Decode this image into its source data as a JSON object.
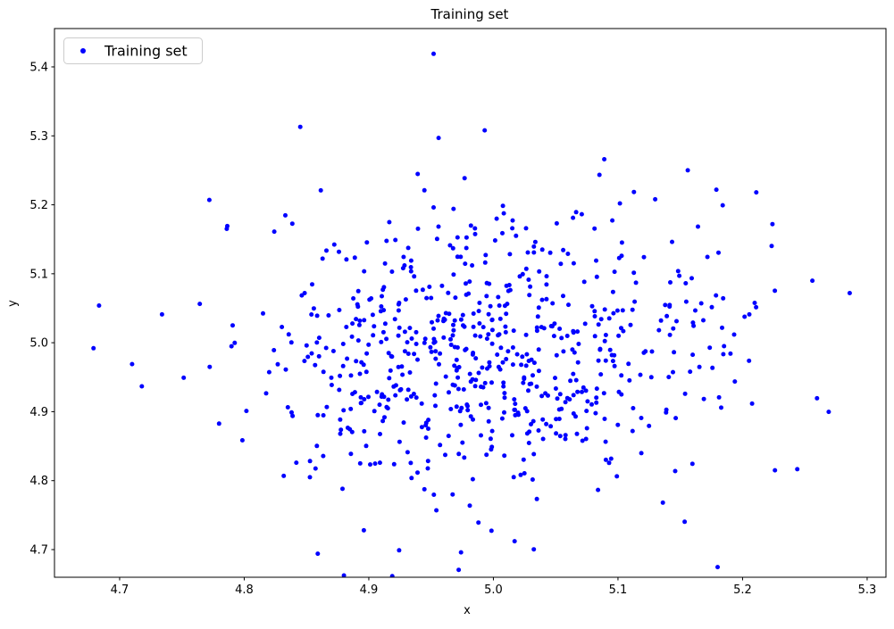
{
  "chart_data": {
    "type": "scatter",
    "title": "Training set",
    "xlabel": "x",
    "ylabel": "y",
    "legend": {
      "label": "Training set",
      "location": "upper-left",
      "marker_color": "#0000ff",
      "edge_color": "#cccccc",
      "background": "#ffffff"
    },
    "marker": {
      "shape": "dot",
      "color": "#0000ff",
      "radius_px": 2.5
    },
    "axes": {
      "xlim": [
        4.6477,
        5.3151
      ],
      "ylim": [
        4.6599,
        5.4556
      ],
      "x_ticks": [
        4.7,
        4.8,
        4.9,
        5.0,
        5.1,
        5.2,
        5.3
      ],
      "y_ticks": [
        4.7,
        4.8,
        4.9,
        5.0,
        5.1,
        5.2,
        5.3,
        5.4
      ],
      "tick_format_decimals": 1,
      "grid": false,
      "spine_color": "#000000",
      "tick_color": "#000000",
      "background": "#ffffff"
    },
    "series": [
      {
        "name": "Training set",
        "color": "#0000ff",
        "distribution": {
          "kind": "gaussian",
          "n": 680,
          "mean": [
            4.995,
            4.99
          ],
          "std": [
            0.095,
            0.105
          ],
          "seed": 42,
          "note": "dense blue point cloud centered near (5.0, 5.0)"
        },
        "notable_points": [
          [
            4.952,
            5.419
          ],
          [
            4.993,
            5.308
          ],
          [
            4.956,
            5.297
          ],
          [
            4.845,
            5.313
          ],
          [
            4.772,
            5.207
          ],
          [
            5.089,
            5.266
          ],
          [
            5.156,
            5.25
          ],
          [
            5.224,
            5.172
          ],
          [
            5.179,
            5.222
          ],
          [
            5.211,
            5.218
          ],
          [
            5.286,
            5.072
          ],
          [
            4.679,
            4.992
          ],
          [
            4.71,
            4.969
          ],
          [
            4.734,
            5.041
          ],
          [
            4.859,
            4.694
          ],
          [
            4.974,
            4.696
          ],
          [
            4.896,
            4.728
          ],
          [
            5.136,
            4.768
          ],
          [
            5.226,
            4.815
          ],
          [
            5.256,
            5.09
          ]
        ]
      }
    ]
  }
}
